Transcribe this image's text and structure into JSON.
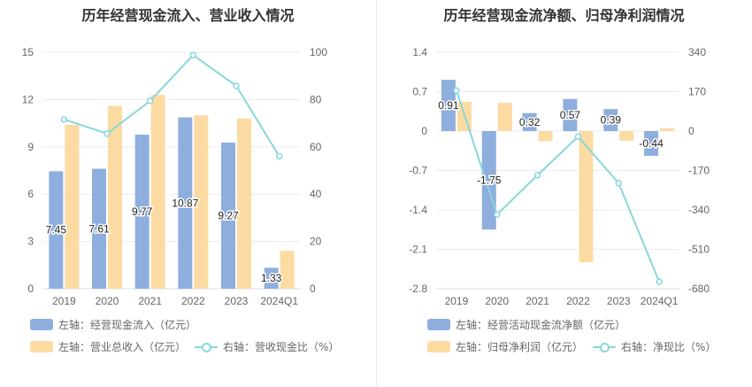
{
  "colors": {
    "blue": "#8eaedd",
    "orange": "#fcdba2",
    "line": "#88d7dc",
    "axis_text": "#666666",
    "grid": "#e8ecf4"
  },
  "left": {
    "title": "历年经营现金流入、营业收入情况",
    "legend": [
      {
        "label": "左轴：经营现金流入（亿元）",
        "color": "#8eaedd",
        "kind": "bar"
      },
      {
        "label": "左轴：营业总收入（亿元）",
        "color": "#fcdba2",
        "kind": "bar"
      },
      {
        "label": "右轴：营收现金比（%）",
        "color": "#88d7dc",
        "kind": "line"
      }
    ]
  },
  "right": {
    "title": "历年经营现金流净额、归母净利润情况",
    "legend": [
      {
        "label": "左轴：经营活动现金流净额（亿元）",
        "color": "#8eaedd",
        "kind": "bar"
      },
      {
        "label": "左轴：归母净利润（亿元）",
        "color": "#fcdba2",
        "kind": "bar"
      },
      {
        "label": "右轴：净现比（%）",
        "color": "#88d7dc",
        "kind": "line"
      }
    ]
  },
  "chart_data": [
    {
      "type": "bar",
      "title": "历年经营现金流入、营业收入情况",
      "categories": [
        "2019",
        "2020",
        "2021",
        "2022",
        "2023",
        "2024Q1"
      ],
      "y_left": {
        "ticks": [
          "0",
          "3",
          "6",
          "9",
          "12",
          "15"
        ],
        "range": [
          0,
          15
        ]
      },
      "y_right": {
        "ticks": [
          "0",
          "20",
          "40",
          "60",
          "80",
          "100"
        ],
        "range": [
          0,
          100
        ]
      },
      "series": [
        {
          "name": "经营现金流入（亿元）",
          "axis": "left",
          "kind": "bar",
          "values": [
            7.45,
            7.61,
            9.77,
            10.87,
            9.27,
            1.33
          ],
          "labels": [
            "7.45",
            "7.61",
            "9.77",
            "10.87",
            "9.27",
            "1.33"
          ]
        },
        {
          "name": "营业总收入（亿元）",
          "axis": "left",
          "kind": "bar",
          "values": [
            10.4,
            11.6,
            12.3,
            11.0,
            10.8,
            2.4
          ]
        },
        {
          "name": "营收现金比（%）",
          "axis": "right",
          "kind": "line",
          "values": [
            71.6,
            65.6,
            79.4,
            98.8,
            85.8,
            56.0
          ]
        }
      ]
    },
    {
      "type": "bar",
      "title": "历年经营现金流净额、归母净利润情况",
      "categories": [
        "2019",
        "2020",
        "2021",
        "2022",
        "2023",
        "2024Q1"
      ],
      "y_left": {
        "ticks": [
          "-2.8",
          "-2.1",
          "-1.4",
          "-0.7",
          "0",
          "0.7",
          "1.4"
        ],
        "range": [
          -2.8,
          1.4
        ]
      },
      "y_right": {
        "ticks": [
          "-680",
          "-510",
          "-340",
          "-170",
          "0",
          "170",
          "340"
        ],
        "range": [
          -680,
          340
        ]
      },
      "series": [
        {
          "name": "经营活动现金流净额（亿元）",
          "axis": "left",
          "kind": "bar",
          "values": [
            0.91,
            -1.75,
            0.32,
            0.57,
            0.39,
            -0.44
          ],
          "labels": [
            "0.91",
            "-1.75",
            "0.32",
            "0.57",
            "0.39",
            "-0.44"
          ]
        },
        {
          "name": "归母净利润（亿元）",
          "axis": "left",
          "kind": "bar",
          "values": [
            0.52,
            0.5,
            -0.18,
            -2.33,
            -0.17,
            0.05
          ]
        },
        {
          "name": "净现比（%）",
          "axis": "right",
          "kind": "line",
          "values": [
            175,
            -360,
            -190,
            -24,
            -225,
            -650
          ]
        }
      ]
    }
  ]
}
